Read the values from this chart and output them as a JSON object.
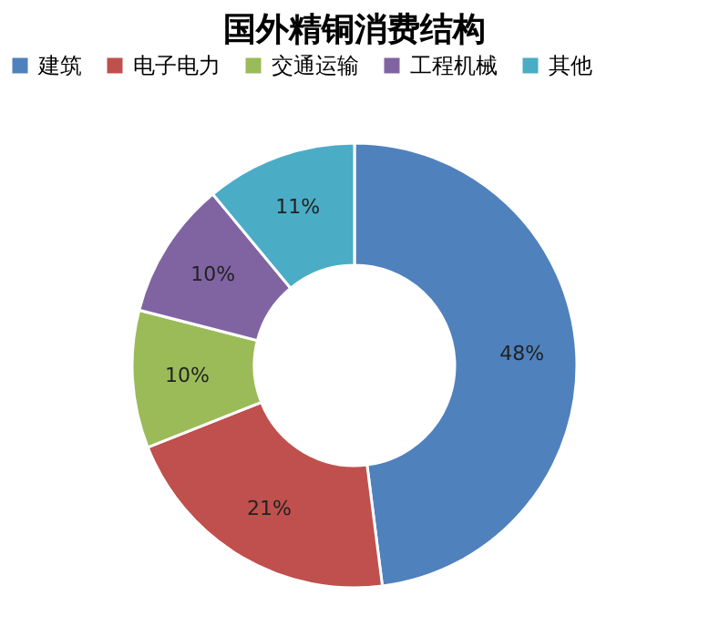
{
  "chart_data": {
    "type": "donut",
    "title": "国外精铜消费结构",
    "categories": [
      "建筑",
      "电子电力",
      "交通运输",
      "工程机械",
      "其他"
    ],
    "values": [
      48,
      21,
      10,
      10,
      11
    ],
    "value_labels": [
      "48%",
      "21%",
      "10%",
      "10%",
      "11%"
    ],
    "colors": [
      "#4f81bd",
      "#c0504d",
      "#9bbb59",
      "#8064a2",
      "#4bacc6"
    ],
    "legend": "top"
  }
}
